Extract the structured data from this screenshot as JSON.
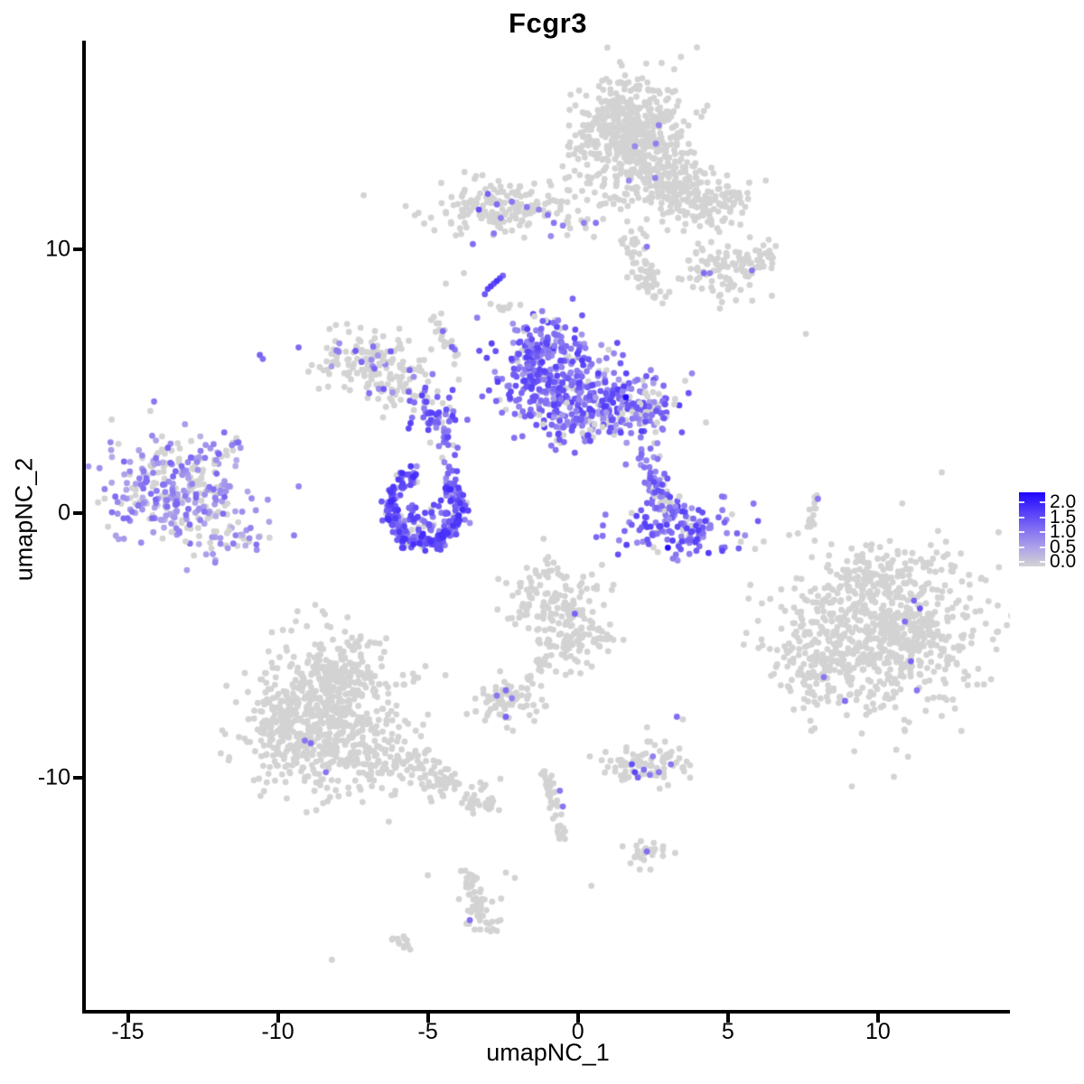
{
  "title": "Fcgr3",
  "axes": {
    "x_label": "umapNC_1",
    "y_label": "umapNC_2"
  },
  "legend": {
    "tick_labels": [
      "2.0",
      "1.5",
      "1.0",
      "0.5",
      "0.0"
    ]
  },
  "colors": {
    "low": "#D3D3D3",
    "mid": "#8270F2",
    "high": "#1F06FF",
    "axis": "#000000",
    "background": "#FFFFFF"
  },
  "chart_data": {
    "type": "scatter",
    "title": "Fcgr3",
    "xlabel": "umapNC_1",
    "ylabel": "umapNC_2",
    "xlim": [
      -16.4,
      14.4
    ],
    "ylim": [
      -18.8,
      17.9
    ],
    "x_ticks": [
      -15,
      -10,
      -5,
      0,
      5,
      10
    ],
    "y_ticks": [
      10,
      0,
      -10
    ],
    "grid": false,
    "legend_position": "right",
    "color_scale": {
      "low": "#D3D3D3",
      "high": "#1F06FF",
      "domain": [
        0,
        2.15
      ],
      "breaks": [
        0.0,
        0.5,
        1.0,
        1.5,
        2.0
      ]
    },
    "point_radius_px": 3.4,
    "seed": 12345,
    "clusters": [
      {
        "name": "top-cluster-main",
        "kind": "blob",
        "c": [
          1.7,
          14.3
        ],
        "s": [
          0.85,
          1.05
        ],
        "n": 550,
        "p": 0.004,
        "e": [
          0.8,
          1.0
        ]
      },
      {
        "name": "top-cluster-lobe1",
        "kind": "blob",
        "c": [
          3.2,
          12.4
        ],
        "s": [
          0.75,
          0.6
        ],
        "n": 150,
        "p": 0.005,
        "e": [
          0.8,
          1.0
        ]
      },
      {
        "name": "top-cluster-lobe2",
        "kind": "blob",
        "c": [
          4.5,
          11.7
        ],
        "s": [
          0.65,
          0.5
        ],
        "n": 90,
        "p": 0,
        "e": [
          0,
          0
        ]
      },
      {
        "name": "upper-band",
        "kind": "blob",
        "c": [
          -2.3,
          11.6
        ],
        "s": [
          1.35,
          0.5
        ],
        "n": 190,
        "p": 0.02,
        "e": [
          0.8,
          1.2
        ]
      },
      {
        "name": "upper-right-blob",
        "kind": "blob",
        "c": [
          4.8,
          9.2
        ],
        "s": [
          0.85,
          0.6
        ],
        "n": 85,
        "p": 0,
        "e": [
          0,
          0
        ]
      },
      {
        "name": "upper-right-small",
        "kind": "blob",
        "c": [
          6.0,
          9.8
        ],
        "s": [
          0.45,
          0.4
        ],
        "n": 30,
        "p": 0,
        "e": [
          0,
          0
        ]
      },
      {
        "name": "mid-left-gray",
        "kind": "blob",
        "c": [
          -7.0,
          5.8
        ],
        "s": [
          0.9,
          0.62
        ],
        "n": 130,
        "p": 0.1,
        "e": [
          0.6,
          1.3
        ]
      },
      {
        "name": "mid-left-lobe",
        "kind": "blob",
        "c": [
          -5.9,
          4.9
        ],
        "s": [
          0.66,
          0.48
        ],
        "n": 60,
        "p": 0.18,
        "e": [
          0.6,
          1.3
        ]
      },
      {
        "name": "central-knot",
        "kind": "blob",
        "c": [
          -4.9,
          3.8
        ],
        "s": [
          0.42,
          0.35
        ],
        "n": 45,
        "p": 0.85,
        "e": [
          0.8,
          1.6
        ]
      },
      {
        "name": "central-main",
        "kind": "blob",
        "c": [
          -0.9,
          5.2
        ],
        "s": [
          0.9,
          0.95
        ],
        "n": 280,
        "p": 0.88,
        "e": [
          0.6,
          1.6
        ]
      },
      {
        "name": "central-right",
        "kind": "blob",
        "c": [
          1.2,
          4.2
        ],
        "s": [
          1.05,
          0.68
        ],
        "n": 180,
        "p": 0.8,
        "e": [
          0.6,
          1.6
        ]
      },
      {
        "name": "central-bottom",
        "kind": "blob",
        "c": [
          0.0,
          3.4
        ],
        "s": [
          0.75,
          0.45
        ],
        "n": 70,
        "p": 0.8,
        "e": [
          0.6,
          1.5
        ]
      },
      {
        "name": "central-right-tip",
        "kind": "blob",
        "c": [
          2.4,
          3.9
        ],
        "s": [
          0.45,
          0.4
        ],
        "n": 50,
        "p": 0.75,
        "e": [
          0.6,
          1.4
        ]
      },
      {
        "name": "central-top-tip",
        "kind": "blob",
        "c": [
          -1.2,
          6.4
        ],
        "s": [
          0.4,
          0.38
        ],
        "n": 50,
        "p": 0.9,
        "e": [
          0.7,
          1.6
        ]
      },
      {
        "name": "left-cluster",
        "kind": "blob",
        "c": [
          -13.3,
          1.0
        ],
        "s": [
          1.15,
          1.0
        ],
        "n": 300,
        "p": 0.68,
        "e": [
          0.4,
          1.2
        ]
      },
      {
        "name": "left-cluster-bottom",
        "kind": "blob",
        "c": [
          -11.6,
          -1.0
        ],
        "s": [
          0.9,
          0.35
        ],
        "n": 40,
        "p": 0.55,
        "e": [
          0.4,
          1.1
        ]
      },
      {
        "name": "right-crescent-main",
        "kind": "blob",
        "c": [
          3.3,
          -0.5
        ],
        "s": [
          1.0,
          0.5
        ],
        "n": 130,
        "p": 0.85,
        "e": [
          0.7,
          1.6
        ]
      },
      {
        "name": "right-crescent-top",
        "kind": "blob",
        "c": [
          2.3,
          2.3
        ],
        "s": [
          0.3,
          0.4
        ],
        "n": 15,
        "p": 0.6,
        "e": [
          0.6,
          1.2
        ]
      },
      {
        "name": "lower-mid-gray-top",
        "kind": "blob",
        "c": [
          -0.75,
          -3.4
        ],
        "s": [
          0.8,
          0.78
        ],
        "n": 140,
        "p": 0,
        "e": [
          0,
          0
        ]
      },
      {
        "name": "lower-mid-gray-bottom",
        "kind": "blob",
        "c": [
          -0.1,
          -4.9
        ],
        "s": [
          0.66,
          0.55
        ],
        "n": 90,
        "p": 0,
        "e": [
          0,
          0
        ]
      },
      {
        "name": "small-gray-left",
        "kind": "blob",
        "c": [
          -2.4,
          -7.1
        ],
        "s": [
          0.62,
          0.42
        ],
        "n": 70,
        "p": 0,
        "e": [
          0,
          0
        ]
      },
      {
        "name": "bottom-left-top",
        "kind": "blob",
        "c": [
          -8.0,
          -6.1
        ],
        "s": [
          0.9,
          0.85
        ],
        "n": 220,
        "p": 0,
        "e": [
          0,
          0
        ]
      },
      {
        "name": "bottom-left-main",
        "kind": "blob",
        "c": [
          -8.4,
          -8.4
        ],
        "s": [
          1.35,
          1.15
        ],
        "n": 480,
        "p": 0,
        "e": [
          0,
          0
        ]
      },
      {
        "name": "bottom-left-west",
        "kind": "blob",
        "c": [
          -9.9,
          -7.6
        ],
        "s": [
          0.6,
          0.8
        ],
        "n": 80,
        "p": 0,
        "e": [
          0,
          0
        ]
      },
      {
        "name": "bottom-left-tail1",
        "kind": "blob",
        "c": [
          -6.0,
          -9.4
        ],
        "s": [
          0.6,
          0.4
        ],
        "n": 60,
        "p": 0,
        "e": [
          0,
          0
        ]
      },
      {
        "name": "bottom-left-tail2",
        "kind": "blob",
        "c": [
          -4.7,
          -10.1
        ],
        "s": [
          0.55,
          0.33
        ],
        "n": 40,
        "p": 0,
        "e": [
          0,
          0
        ]
      },
      {
        "name": "bottom-left-tail3",
        "kind": "blob",
        "c": [
          -3.7,
          -10.7
        ],
        "s": [
          0.42,
          0.27
        ],
        "n": 25,
        "p": 0,
        "e": [
          0,
          0
        ]
      },
      {
        "name": "bottom-left-tail4",
        "kind": "blob",
        "c": [
          -2.9,
          -11.1
        ],
        "s": [
          0.3,
          0.2
        ],
        "n": 12,
        "p": 0,
        "e": [
          0,
          0
        ]
      },
      {
        "name": "right-cluster-main",
        "kind": "blob",
        "c": [
          10.1,
          -4.5
        ],
        "s": [
          1.65,
          1.55
        ],
        "n": 750,
        "p": 0,
        "e": [
          0,
          0
        ]
      },
      {
        "name": "right-cluster-arm",
        "kind": "blob",
        "c": [
          8.0,
          -5.6
        ],
        "s": [
          0.6,
          0.85
        ],
        "n": 90,
        "p": 0,
        "e": [
          0,
          0
        ]
      },
      {
        "name": "right-cluster-top",
        "kind": "blob",
        "c": [
          10.4,
          -2.2
        ],
        "s": [
          0.9,
          0.5
        ],
        "n": 70,
        "p": 0,
        "e": [
          0,
          0
        ]
      },
      {
        "name": "small-cluster-se",
        "kind": "blob",
        "c": [
          2.3,
          -9.5
        ],
        "s": [
          0.75,
          0.4
        ],
        "n": 85,
        "p": 0,
        "e": [
          0,
          0
        ]
      },
      {
        "name": "tiny-blob-south",
        "kind": "blob",
        "c": [
          2.3,
          -12.8
        ],
        "s": [
          0.4,
          0.3
        ],
        "n": 25,
        "p": 0,
        "e": [
          0,
          0
        ]
      },
      {
        "name": "tiny-blob-bottom",
        "kind": "blob",
        "c": [
          -3.2,
          -15.3
        ],
        "s": [
          0.4,
          0.35
        ],
        "n": 25,
        "p": 0,
        "e": [
          0,
          0
        ]
      },
      {
        "name": "crescent-fill",
        "kind": "blob",
        "c": [
          -5.1,
          -0.1
        ],
        "s": [
          0.55,
          0.4
        ],
        "n": 50,
        "p": 0.8,
        "e": [
          0.7,
          1.6
        ]
      },
      {
        "name": "purple-crescent",
        "kind": "arc",
        "c": [
          -5.1,
          0.2
        ],
        "r": [
          1.15,
          1.3
        ],
        "ang": [
          100,
          420
        ],
        "rj": 0.13,
        "n": 250,
        "p": 0.9,
        "e": [
          0.7,
          1.8
        ]
      },
      {
        "name": "top-chain-down",
        "kind": "chain",
        "a": [
          1.8,
          10.5
        ],
        "b": [
          2.4,
          8.5
        ],
        "j": 0.25,
        "n": 40,
        "p": 0,
        "e": [
          0,
          0
        ]
      },
      {
        "name": "upper-right-chain",
        "kind": "chain",
        "a": [
          1.8,
          9.1
        ],
        "b": [
          3.1,
          8.2
        ],
        "j": 0.2,
        "n": 25,
        "p": 0,
        "e": [
          0,
          0
        ]
      },
      {
        "name": "mid-chain-gray",
        "kind": "chain",
        "a": [
          -4.8,
          7.6
        ],
        "b": [
          -4.1,
          5.8
        ],
        "j": 0.12,
        "n": 20,
        "p": 0,
        "e": [
          0,
          0
        ]
      },
      {
        "name": "knot-to-crescent-chain",
        "kind": "chain",
        "a": [
          -4.5,
          3.3
        ],
        "b": [
          -4.2,
          1.6
        ],
        "j": 0.15,
        "n": 25,
        "p": 0.7,
        "e": [
          0.8,
          1.5
        ]
      },
      {
        "name": "left-cluster-tail",
        "kind": "chain",
        "a": [
          -12.0,
          2.1
        ],
        "b": [
          -11.1,
          2.9
        ],
        "j": 0.12,
        "n": 14,
        "p": 0.5,
        "e": [
          0.5,
          1.2
        ]
      },
      {
        "name": "right-crescent-arm",
        "kind": "chain",
        "a": [
          2.4,
          1.6
        ],
        "b": [
          3.1,
          0.1
        ],
        "j": 0.22,
        "n": 55,
        "p": 0.8,
        "e": [
          0.7,
          1.5
        ]
      },
      {
        "name": "right-streak",
        "kind": "chain",
        "a": [
          7.7,
          -0.75
        ],
        "b": [
          8.0,
          0.95
        ],
        "j": 0.07,
        "n": 14,
        "p": 0,
        "e": [
          0,
          0
        ]
      },
      {
        "name": "lower-mid-chain",
        "kind": "chain",
        "a": [
          -1.2,
          -5.5
        ],
        "b": [
          -1.7,
          -6.6
        ],
        "j": 0.12,
        "n": 15,
        "p": 0,
        "e": [
          0,
          0
        ]
      },
      {
        "name": "south-streak",
        "kind": "chain",
        "a": [
          -1.1,
          -9.6
        ],
        "b": [
          -0.5,
          -12.3
        ],
        "j": 0.12,
        "n": 45,
        "p": 0,
        "e": [
          0,
          0
        ]
      },
      {
        "name": "south-chain2",
        "kind": "chain",
        "a": [
          -3.7,
          -13.5
        ],
        "b": [
          -3.2,
          -15.4
        ],
        "j": 0.12,
        "n": 35,
        "p": 0,
        "e": [
          0,
          0
        ]
      },
      {
        "name": "bottom-tail-chain",
        "kind": "chain",
        "a": [
          -6.2,
          -16.0
        ],
        "b": [
          -5.5,
          -16.5
        ],
        "j": 0.1,
        "n": 14,
        "p": 0,
        "e": [
          0,
          0
        ]
      },
      {
        "name": "upper-mid-chain2",
        "kind": "chain",
        "a": [
          -3.0,
          8.0
        ],
        "b": [
          -1.5,
          7.6
        ],
        "j": 0.15,
        "n": 10,
        "p": 0,
        "e": [
          0,
          0
        ]
      }
    ],
    "gray_points": [
      [
        7.6,
        6.8
      ],
      [
        -2.4,
        -13.6
      ],
      [
        -2.1,
        -13.8
      ],
      [
        -5.0,
        -13.7
      ],
      [
        -8.2,
        -16.9
      ],
      [
        -10.8,
        -10.1
      ],
      [
        -10.2,
        -4.5
      ],
      [
        3.5,
        -7.8
      ],
      [
        -1.1,
        -7.3
      ],
      [
        0.45,
        -14.1
      ],
      [
        -3.8,
        9.1
      ],
      [
        -4.4,
        8.7
      ]
    ],
    "accent_points": [
      [
        -10.6,
        6.0,
        1.2
      ],
      [
        -10.5,
        5.85,
        1.1
      ],
      [
        -3.3,
        11.5,
        1.4
      ],
      [
        -3.0,
        12.1,
        1.2
      ],
      [
        -2.7,
        11.7,
        1.1
      ],
      [
        -2.2,
        11.8,
        1.0
      ],
      [
        -1.7,
        11.6,
        1.0
      ],
      [
        -1.3,
        11.5,
        0.9
      ],
      [
        -1.0,
        11.3,
        1.0
      ],
      [
        -0.8,
        11.0,
        1.0
      ],
      [
        -0.5,
        10.9,
        0.9
      ],
      [
        -2.8,
        10.6,
        1.0
      ],
      [
        -3.5,
        10.2,
        1.1
      ],
      [
        -0.9,
        10.5,
        0.8
      ],
      [
        0.2,
        11.0,
        0.9
      ],
      [
        2.7,
        14.7,
        0.9
      ],
      [
        1.9,
        13.9,
        0.8
      ],
      [
        2.6,
        14.0,
        0.9
      ],
      [
        1.7,
        12.6,
        0.8
      ],
      [
        0.6,
        11.0,
        1.0
      ],
      [
        2.3,
        10.1,
        1.0
      ],
      [
        4.2,
        9.1,
        1.1
      ],
      [
        4.4,
        9.1,
        0.9
      ],
      [
        5.8,
        9.2,
        1.0
      ],
      [
        -3.1,
        8.3,
        1.3
      ],
      [
        -3.0,
        8.5,
        1.5
      ],
      [
        -2.9,
        8.6,
        1.6
      ],
      [
        -2.8,
        8.7,
        1.4
      ],
      [
        -2.7,
        8.8,
        1.7
      ],
      [
        -2.6,
        8.9,
        1.5
      ],
      [
        -2.5,
        9.0,
        1.2
      ],
      [
        -4.5,
        6.9,
        1.1
      ],
      [
        -4.2,
        6.3,
        1.2
      ],
      [
        -4.1,
        6.2,
        1.0
      ],
      [
        1.6,
        4.4,
        2.1
      ],
      [
        3.0,
        -1.3,
        2.1
      ],
      [
        8.0,
        0.55,
        1.0
      ],
      [
        -0.1,
        -3.8,
        1.2
      ],
      [
        -2.7,
        -6.9,
        1.0
      ],
      [
        -2.4,
        -6.7,
        1.1
      ],
      [
        -2.2,
        -7.0,
        0.9
      ],
      [
        -2.4,
        -7.7,
        1.2
      ],
      [
        -9.1,
        -8.6,
        1.0
      ],
      [
        -8.9,
        -8.7,
        1.1
      ],
      [
        -8.4,
        -9.8,
        1.0
      ],
      [
        11.2,
        -3.3,
        1.2
      ],
      [
        11.4,
        -3.6,
        1.3
      ],
      [
        10.9,
        -4.1,
        1.1
      ],
      [
        11.1,
        -5.6,
        1.2
      ],
      [
        8.2,
        -6.2,
        1.0
      ],
      [
        8.9,
        -7.1,
        1.1
      ],
      [
        11.3,
        -6.7,
        1.0
      ],
      [
        1.8,
        -9.5,
        1.4
      ],
      [
        1.9,
        -9.8,
        1.5
      ],
      [
        2.0,
        -10.0,
        1.2
      ],
      [
        2.2,
        -9.7,
        1.1
      ],
      [
        2.4,
        -9.9,
        1.0
      ],
      [
        2.7,
        -9.8,
        1.0
      ],
      [
        3.1,
        -9.5,
        1.0
      ],
      [
        2.5,
        -9.2,
        0.9
      ],
      [
        3.3,
        -7.7,
        1.1
      ],
      [
        -0.6,
        -10.5,
        1.0
      ],
      [
        -0.5,
        -11.1,
        1.0
      ],
      [
        2.3,
        -12.8,
        1.1
      ],
      [
        -3.6,
        -15.4,
        1.1
      ]
    ]
  }
}
